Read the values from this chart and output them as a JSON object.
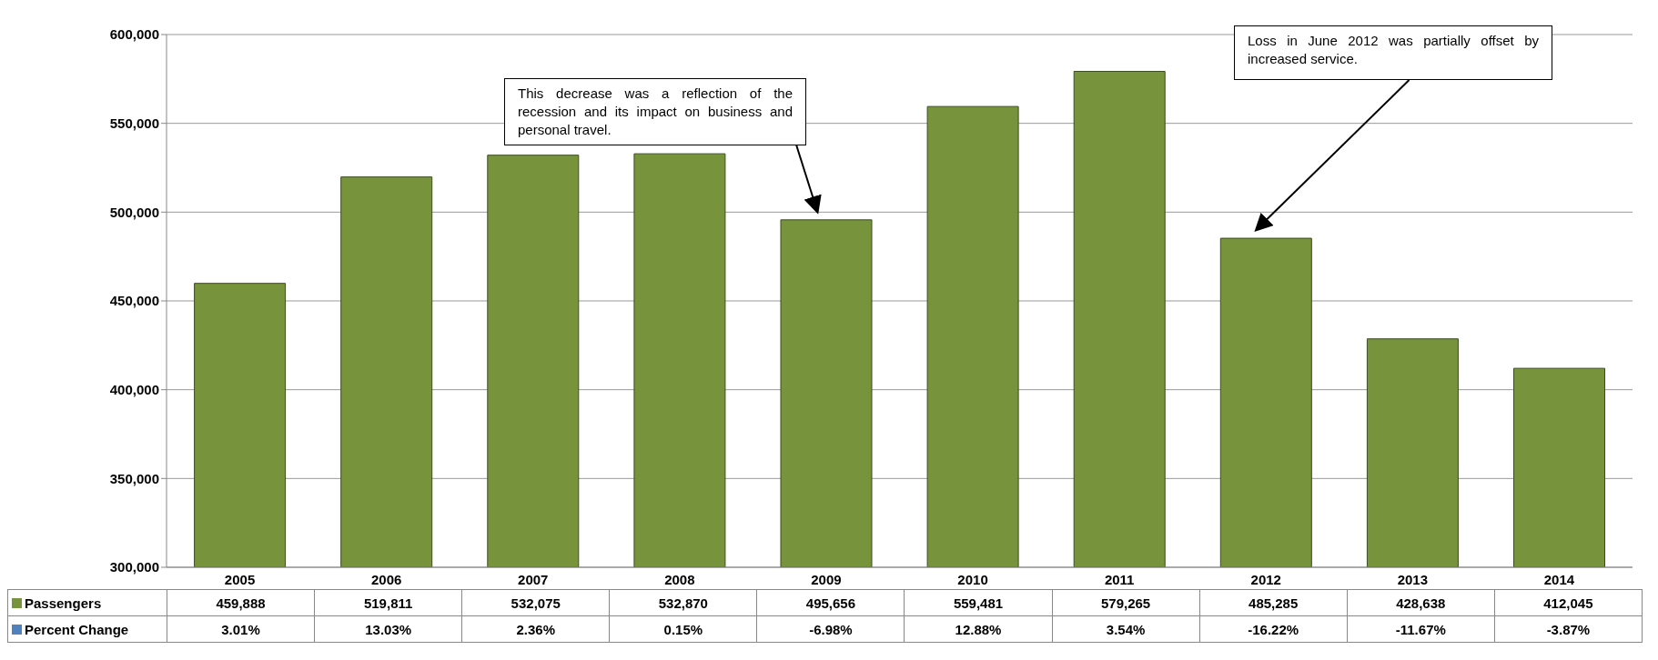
{
  "chart_data": {
    "type": "bar",
    "categories": [
      "2005",
      "2006",
      "2007",
      "2008",
      "2009",
      "2010",
      "2011",
      "2012",
      "2013",
      "2014"
    ],
    "series": [
      {
        "name": "Passengers",
        "color": "#77933c",
        "values": [
          459888,
          519811,
          532075,
          532870,
          495656,
          559481,
          579265,
          485285,
          428638,
          412045
        ],
        "value_labels": [
          "459,888",
          "519,811",
          "532,075",
          "532,870",
          "495,656",
          "559,481",
          "579,265",
          "485,285",
          "428,638",
          "412,045"
        ]
      },
      {
        "name": "Percent Change",
        "color": "#4f81bd",
        "values": [
          null,
          null,
          null,
          null,
          null,
          null,
          null,
          null,
          null,
          null
        ],
        "value_labels": [
          "3.01%",
          "13.03%",
          "2.36%",
          "0.15%",
          "-6.98%",
          "12.88%",
          "3.54%",
          "-16.22%",
          "-11.67%",
          "-3.87%"
        ]
      }
    ],
    "ylim": [
      300000,
      600000
    ],
    "yticks": [
      {
        "value": 300000,
        "label": "300,000"
      },
      {
        "value": 350000,
        "label": "350,000"
      },
      {
        "value": 400000,
        "label": "400,000"
      },
      {
        "value": 450000,
        "label": "450,000"
      },
      {
        "value": 500000,
        "label": "500,000"
      },
      {
        "value": 550000,
        "label": "550,000"
      },
      {
        "value": 600000,
        "label": "600,000"
      }
    ],
    "grid": "y",
    "legend": "bottom",
    "data_labels": true,
    "annotations": [
      "This decrease was a reflection of the recession and its impact on business and personal travel.",
      "Loss in June 2012 was partially offset by increased service."
    ]
  }
}
